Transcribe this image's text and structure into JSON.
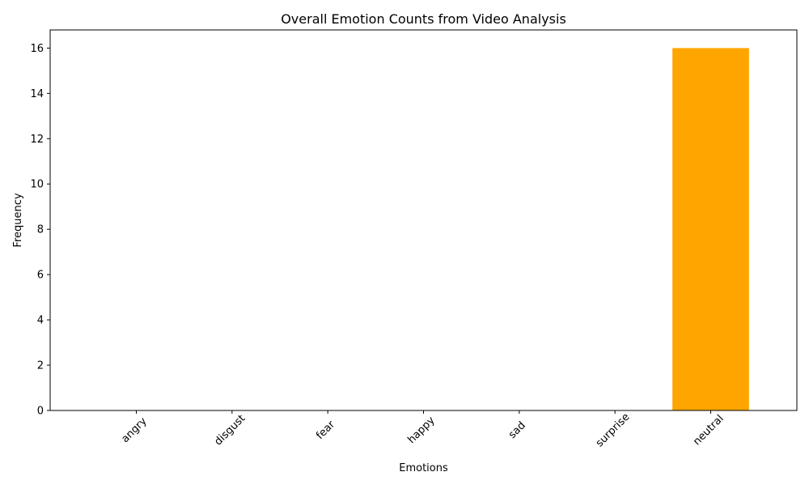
{
  "chart_data": {
    "type": "bar",
    "title": "Overall Emotion Counts from Video Analysis",
    "xlabel": "Emotions",
    "ylabel": "Frequency",
    "categories": [
      "angry",
      "disgust",
      "fear",
      "happy",
      "sad",
      "surprise",
      "neutral"
    ],
    "values": [
      0,
      0,
      0,
      0,
      0,
      0,
      16
    ],
    "ylim": [
      0,
      16.8
    ],
    "yticks": [
      0,
      2,
      4,
      6,
      8,
      10,
      12,
      14,
      16
    ],
    "xtick_rotation_deg": 45,
    "grid": false,
    "legend": "none",
    "bar_color": "#ffa500"
  }
}
